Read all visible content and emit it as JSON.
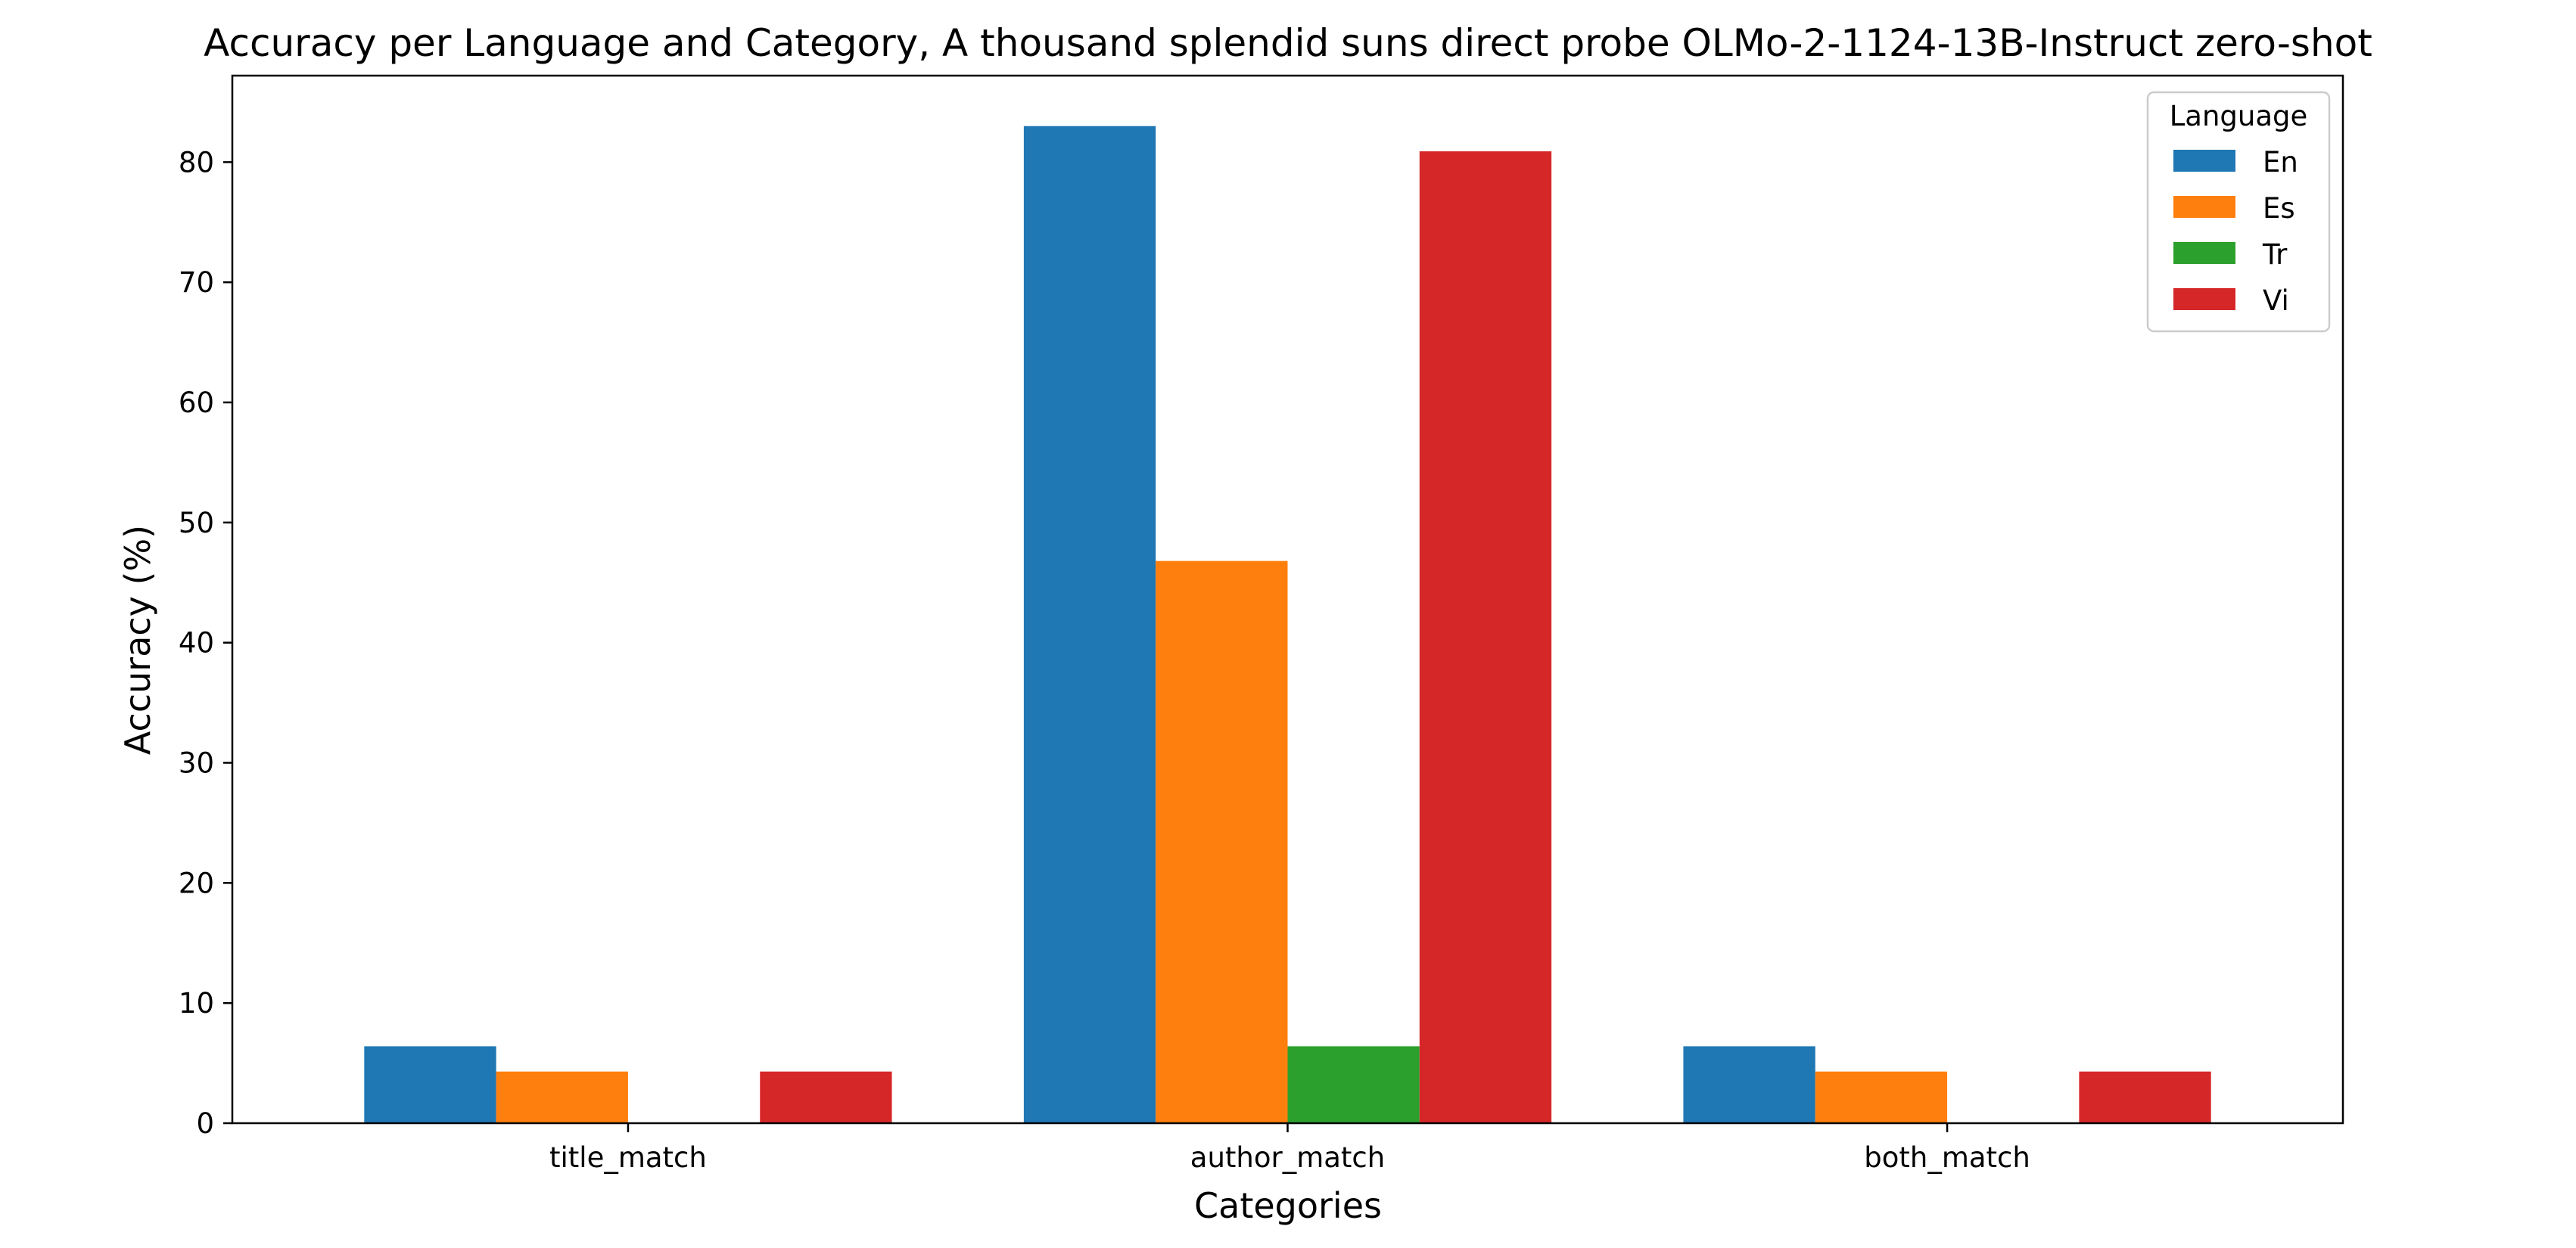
{
  "chart_data": {
    "type": "bar",
    "title": "Accuracy per Language and Category, A thousand splendid suns direct probe OLMo-2-1124-13B-Instruct zero-shot",
    "xlabel": "Categories",
    "ylabel": "Accuracy (%)",
    "categories": [
      "title_match",
      "author_match",
      "both_match"
    ],
    "ylim": [
      0,
      87.2
    ],
    "yticks": [
      0,
      10,
      20,
      30,
      40,
      50,
      60,
      70,
      80
    ],
    "grid": false,
    "legend": {
      "title": "Language",
      "placement": "top-right"
    },
    "series": [
      {
        "name": "En",
        "color": "#1f77b4",
        "values": [
          6.4,
          83.0,
          6.4
        ]
      },
      {
        "name": "Es",
        "color": "#ff7f0e",
        "values": [
          4.3,
          46.8,
          4.3
        ]
      },
      {
        "name": "Tr",
        "color": "#2ca02c",
        "values": [
          0,
          6.4,
          0
        ]
      },
      {
        "name": "Vi",
        "color": "#d62728",
        "values": [
          4.3,
          80.9,
          4.3
        ]
      }
    ]
  }
}
